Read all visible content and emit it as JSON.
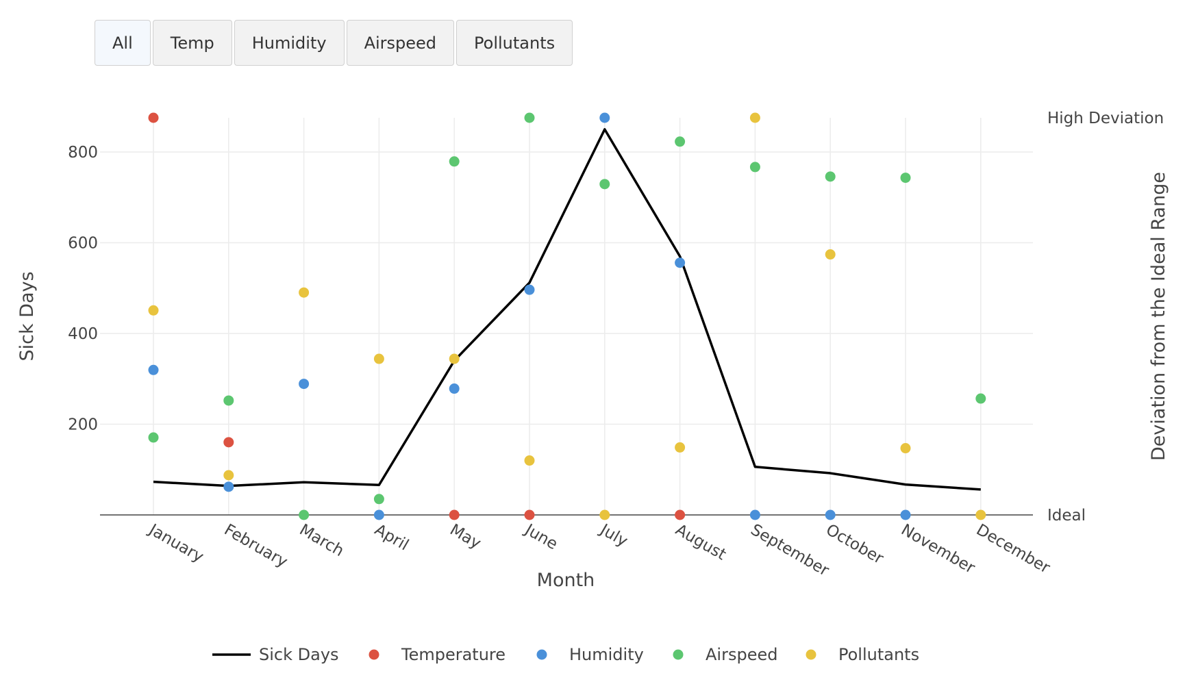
{
  "buttons": [
    {
      "label": "All",
      "active": true
    },
    {
      "label": "Temp",
      "active": false
    },
    {
      "label": "Humidity",
      "active": false
    },
    {
      "label": "Airspeed",
      "active": false
    },
    {
      "label": "Pollutants",
      "active": false
    }
  ],
  "chart_data": {
    "type": "line",
    "title": "",
    "xlabel": "Month",
    "ylabel": "Sick Days",
    "y2label": "Deviation from the Ideal Range",
    "y2ticks": [
      "Ideal",
      "High Deviation"
    ],
    "categories": [
      "January",
      "February",
      "March",
      "April",
      "May",
      "June",
      "July",
      "August",
      "September",
      "October",
      "November",
      "December"
    ],
    "ylim": [
      0,
      900
    ],
    "yticks": [
      200,
      400,
      600,
      800
    ],
    "grid": true,
    "legend_position": "bottom",
    "series": [
      {
        "name": "Sick Days",
        "kind": "line",
        "axis": "y",
        "color": "#000000",
        "values": [
          73,
          64,
          72,
          66,
          340,
          512,
          850,
          570,
          106,
          92,
          67,
          56
        ]
      },
      {
        "name": "Temperature",
        "kind": "scatter",
        "axis": "y2",
        "color": "#dc5241",
        "values": [
          1.0,
          0.183,
          null,
          null,
          0.0,
          0.0,
          null,
          0.0,
          null,
          null,
          null,
          null
        ]
      },
      {
        "name": "Humidity",
        "kind": "scatter",
        "axis": "y2",
        "color": "#4a90d9",
        "values": [
          0.365,
          0.071,
          0.33,
          0.0,
          0.318,
          0.567,
          1.0,
          0.635,
          0.0,
          0.0,
          0.0,
          null
        ]
      },
      {
        "name": "Airspeed",
        "kind": "scatter",
        "axis": "y2",
        "color": "#5cc670",
        "values": [
          0.195,
          0.288,
          0.0,
          0.04,
          0.89,
          1.0,
          0.833,
          0.94,
          0.876,
          0.852,
          0.849,
          0.293
        ]
      },
      {
        "name": "Pollutants",
        "kind": "scatter",
        "axis": "y2",
        "color": "#e8c33e",
        "values": [
          0.515,
          0.1,
          0.56,
          0.393,
          0.393,
          0.137,
          0.0,
          0.17,
          1.0,
          0.656,
          0.168,
          0.0
        ]
      }
    ]
  }
}
